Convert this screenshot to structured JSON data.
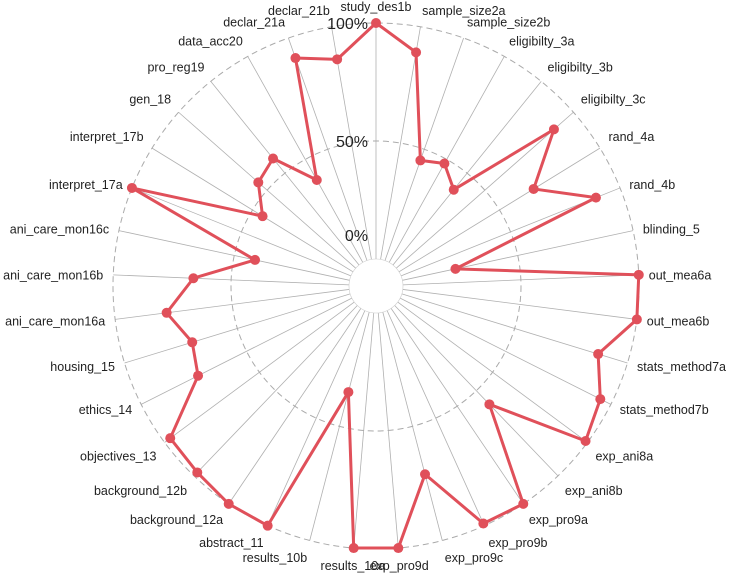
{
  "chart_data": {
    "type": "radar",
    "series_color": "#e0505a",
    "grid_labels": [
      "0%",
      "50%",
      "100%"
    ],
    "range": [
      0,
      1
    ],
    "categories": [
      "study_des1b",
      "sample_size2a",
      "sample_size2b",
      "eligibilty_3a",
      "eligibilty_3b",
      "eligibilty_3c",
      "rand_4a",
      "rand_4b",
      "blinding_5",
      "out_mea6a",
      "out_mea6b",
      "stats_method7a",
      "stats_method7b",
      "exp_ani8a",
      "exp_ani8b",
      "exp_pro9a",
      "exp_pro9b",
      "exp_pro9c",
      "exp_pro9d",
      "results_10a",
      "results_10b",
      "abstract_11",
      "background_12a",
      "background_12b",
      "objectives_13",
      "ethics_14",
      "housing_15",
      "ani_care_mon16a",
      "ani_care_mon16b",
      "ani_care_mon16c",
      "interpret_17a",
      "interpret_17b",
      "gen_18",
      "pro_reg19",
      "data_acc20",
      "declar_21a",
      "declar_21b"
    ],
    "values": [
      1.0,
      0.89,
      0.45,
      0.48,
      0.41,
      0.89,
      0.67,
      0.89,
      0.23,
      1.0,
      1.0,
      0.87,
      0.95,
      0.99,
      0.58,
      1.0,
      0.99,
      0.71,
      1.0,
      1.0,
      0.35,
      1.0,
      1.0,
      0.98,
      0.97,
      0.73,
      0.7,
      0.78,
      0.66,
      0.41,
      1.0,
      0.45,
      0.55,
      0.58,
      0.4,
      0.91,
      0.86
    ]
  }
}
